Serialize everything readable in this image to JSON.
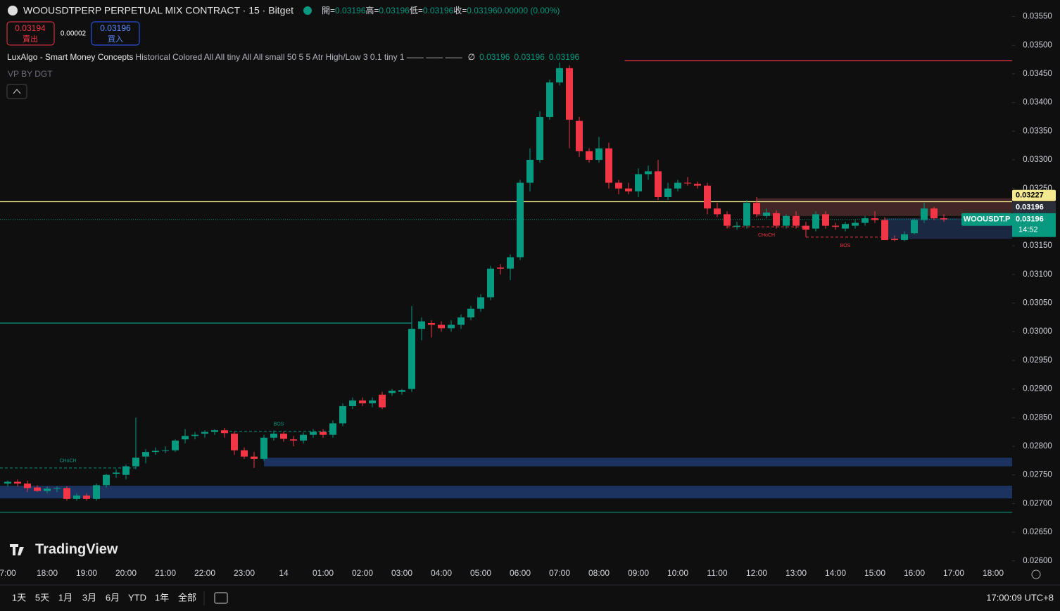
{
  "header": {
    "title": "WOOUSDTPERP PERPETUAL MIX CONTRACT · 15 · Bitget",
    "ohlc": [
      {
        "key": "開=",
        "value": 0.03196
      },
      {
        "key": "高=",
        "value": 0.03196
      },
      {
        "key": "低=",
        "value": 0.03196
      },
      {
        "key": "收=",
        "value": 0.03196
      }
    ],
    "change": "0.00000 (0.00%)",
    "sell": {
      "price": 0.03194,
      "label": "賣出"
    },
    "spread": 2e-05,
    "buy": {
      "price": 0.03196,
      "label": "買入"
    },
    "indicator": {
      "name": "LuxAlgo - Smart Money Concepts",
      "params": "Historical Colored All All tiny All All small 50 5 5 Atr High/Low 3 0.1 tiny 1 —— —— ——",
      "symbol": "∅",
      "values": [
        0.03196,
        0.03196,
        0.03196
      ]
    },
    "vp": "VP BY DGT"
  },
  "chart_data": {
    "type": "candlestick",
    "up_color": "#089981",
    "down_color": "#f23645",
    "categories": [
      "7:00",
      null,
      null,
      null,
      "18:00",
      null,
      null,
      null,
      "19:00",
      null,
      null,
      null,
      "20:00",
      null,
      null,
      null,
      "21:00",
      null,
      null,
      null,
      "22:00",
      null,
      null,
      null,
      "23:00",
      null,
      null,
      null,
      "14",
      null,
      null,
      null,
      "01:00",
      null,
      null,
      null,
      "02:00",
      null,
      null,
      null,
      "03:00",
      null,
      null,
      null,
      "04:00",
      null,
      null,
      null,
      "05:00",
      null,
      null,
      null,
      "06:00",
      null,
      null,
      null,
      "07:00",
      null,
      null,
      null,
      "08:00",
      null,
      null,
      null,
      "09:00",
      null,
      null,
      null,
      "10:00",
      null,
      null,
      null,
      "11:00",
      null,
      null,
      null,
      "12:00",
      null,
      null,
      null,
      "13:00",
      null,
      null,
      null,
      "14:00",
      null,
      null,
      null,
      "15:00",
      null,
      null,
      null,
      "16:00",
      null,
      null,
      null,
      "17:00",
      null,
      null,
      null,
      "18:00"
    ],
    "open": [
      0.02735,
      0.02738,
      0.02735,
      0.02728,
      0.02722,
      0.02726,
      0.02727,
      0.02708,
      0.02714,
      0.02708,
      0.02732,
      0.02752,
      0.0275,
      0.02765,
      0.02782,
      0.0279,
      0.02792,
      0.02793,
      0.02812,
      0.02818,
      0.02822,
      0.02825,
      0.02828,
      0.02822,
      0.02793,
      0.02782,
      0.02778,
      0.02815,
      0.02822,
      0.02812,
      0.0281,
      0.0282,
      0.02825,
      0.0282,
      0.0284,
      0.0287,
      0.0288,
      0.02875,
      0.0289,
      0.02893,
      0.02895,
      0.029,
      0.03005,
      0.03015,
      0.03012,
      0.03006,
      0.03012,
      0.03025,
      0.0304,
      0.0306,
      0.03112,
      0.0311,
      0.0313,
      0.0326,
      0.033,
      0.03375,
      0.03435,
      0.0346,
      0.03368,
      0.03315,
      0.033,
      0.0332,
      0.0326,
      0.0325,
      0.03245,
      0.03275,
      0.0328,
      0.03235,
      0.0325,
      0.0326,
      0.03258,
      0.03255,
      0.03215,
      0.03205,
      0.03183,
      0.03185,
      0.03225,
      0.03202,
      0.03207,
      0.03185,
      0.03202,
      0.03185,
      0.0318,
      0.03205,
      0.03185,
      0.0318,
      0.03185,
      0.0319,
      0.03198,
      0.03195,
      0.03162,
      0.0316,
      0.03172,
      0.03195,
      0.03215,
      0.03198,
      null,
      null,
      null,
      null,
      null
    ],
    "high": [
      0.0274,
      0.02742,
      0.0274,
      0.02732,
      0.0273,
      0.0273,
      0.0273,
      0.02718,
      0.02718,
      0.02735,
      0.02752,
      0.0276,
      0.02768,
      0.0285,
      0.02795,
      0.02798,
      0.028,
      0.02812,
      0.0283,
      0.02825,
      0.02828,
      0.0283,
      0.02832,
      0.02826,
      0.02798,
      0.0279,
      0.0282,
      0.02828,
      0.02826,
      0.02818,
      0.02824,
      0.0283,
      0.0283,
      0.02845,
      0.02875,
      0.02885,
      0.02885,
      0.02885,
      0.02895,
      0.029,
      0.029,
      0.03045,
      0.03025,
      0.0302,
      0.03018,
      0.0302,
      0.0303,
      0.03045,
      0.03065,
      0.03115,
      0.03118,
      0.03135,
      0.03265,
      0.0332,
      0.03385,
      0.0344,
      0.0347,
      0.03465,
      0.03375,
      0.0332,
      0.0334,
      0.0333,
      0.03265,
      0.0326,
      0.03285,
      0.0329,
      0.033,
      0.0326,
      0.03265,
      0.0327,
      0.03262,
      0.0326,
      0.03225,
      0.0321,
      0.03192,
      0.0323,
      0.03235,
      0.03215,
      0.03212,
      0.03205,
      0.0321,
      0.03192,
      0.0321,
      0.0321,
      0.0319,
      0.03192,
      0.03195,
      0.03202,
      0.0321,
      0.032,
      0.03168,
      0.03175,
      0.03198,
      0.03225,
      0.03218,
      0.03205,
      null,
      null,
      null,
      null,
      null
    ],
    "low": [
      0.0273,
      0.0273,
      0.0272,
      0.0272,
      0.02718,
      0.0272,
      0.02705,
      0.02705,
      0.02705,
      0.02705,
      0.02728,
      0.02745,
      0.02742,
      0.0276,
      0.0277,
      0.02785,
      0.02788,
      0.0279,
      0.02805,
      0.02812,
      0.02815,
      0.0282,
      0.02815,
      0.02785,
      0.02778,
      0.02762,
      0.02775,
      0.0281,
      0.02808,
      0.028,
      0.02805,
      0.02815,
      0.02815,
      0.02815,
      0.02835,
      0.02865,
      0.0287,
      0.02868,
      0.02865,
      0.02888,
      0.0289,
      0.02895,
      0.02985,
      0.0299,
      0.03,
      0.03,
      0.03005,
      0.0302,
      0.03035,
      0.03055,
      0.031,
      0.0309,
      0.03125,
      0.03245,
      0.03295,
      0.0337,
      0.0343,
      0.0332,
      0.03305,
      0.03295,
      0.03295,
      0.0325,
      0.0324,
      0.0324,
      0.03235,
      0.03265,
      0.0323,
      0.0323,
      0.03245,
      0.03255,
      0.0325,
      0.03205,
      0.032,
      0.0318,
      0.03178,
      0.0318,
      0.032,
      0.03198,
      0.0318,
      0.0318,
      0.0318,
      0.03165,
      0.03175,
      0.0318,
      0.03178,
      0.03175,
      0.0318,
      0.03185,
      0.0319,
      0.0316,
      0.03158,
      0.03158,
      0.0317,
      0.0319,
      0.03195,
      0.03192,
      null,
      null,
      null,
      null,
      null
    ],
    "close": [
      0.02738,
      0.02735,
      0.02727,
      0.02722,
      0.02726,
      0.02727,
      0.02708,
      0.02714,
      0.02708,
      0.02732,
      0.0275,
      0.02754,
      0.02765,
      0.0278,
      0.0279,
      0.02792,
      0.02793,
      0.0281,
      0.02818,
      0.0282,
      0.02825,
      0.02828,
      0.02823,
      0.02793,
      0.02782,
      0.02778,
      0.02815,
      0.02822,
      0.02813,
      0.0281,
      0.0282,
      0.02825,
      0.0282,
      0.0284,
      0.0287,
      0.0288,
      0.02875,
      0.0288,
      0.02868,
      0.02897,
      0.02898,
      0.03005,
      0.03018,
      0.03012,
      0.03006,
      0.03012,
      0.03025,
      0.0304,
      0.0306,
      0.0311,
      0.0311,
      0.0313,
      0.0326,
      0.033,
      0.03375,
      0.03435,
      0.0346,
      0.0337,
      0.03315,
      0.033,
      0.0332,
      0.0326,
      0.0325,
      0.03245,
      0.03275,
      0.0328,
      0.03235,
      0.0325,
      0.0326,
      0.03259,
      0.03255,
      0.03215,
      0.03205,
      0.03185,
      0.03185,
      0.03225,
      0.03205,
      0.03208,
      0.03185,
      0.03202,
      0.03185,
      0.03178,
      0.03205,
      0.03185,
      0.03183,
      0.03188,
      0.0319,
      0.03198,
      0.03195,
      0.0316,
      0.0316,
      0.0317,
      0.03195,
      0.03215,
      0.03198,
      0.03196,
      null,
      null,
      null,
      null,
      null
    ],
    "ylim": [
      0.02596,
      0.03579
    ],
    "yticks": [
      {
        "value": 0.026,
        "label": "0.02600"
      },
      {
        "value": 0.0265,
        "label": "0.02650"
      },
      {
        "value": 0.027,
        "label": "0.02700"
      },
      {
        "value": 0.0275,
        "label": "0.02750"
      },
      {
        "value": 0.028,
        "label": "0.02800"
      },
      {
        "value": 0.0285,
        "label": "0.02850"
      },
      {
        "value": 0.029,
        "label": "0.02900"
      },
      {
        "value": 0.0295,
        "label": "0.02950"
      },
      {
        "value": 0.03,
        "label": "0.03000"
      },
      {
        "value": 0.0305,
        "label": "0.03050"
      },
      {
        "value": 0.031,
        "label": "0.03100"
      },
      {
        "value": 0.0315,
        "label": "0.03150"
      },
      {
        "value": 0.032,
        "label": "0.03200"
      },
      {
        "value": 0.0325,
        "label": "0.03250"
      },
      {
        "value": 0.033,
        "label": "0.03300"
      },
      {
        "value": 0.0335,
        "label": "0.03350"
      },
      {
        "value": 0.034,
        "label": "0.03400"
      },
      {
        "value": 0.0345,
        "label": "0.03450"
      },
      {
        "value": 0.035,
        "label": "0.03500"
      },
      {
        "value": 0.0355,
        "label": "0.03550"
      }
    ],
    "zones": [
      {
        "top": 0.0278,
        "bottom": 0.02765,
        "from": 26,
        "color": "#1e3a6e"
      },
      {
        "top": 0.02731,
        "bottom": 0.02709,
        "from": -1,
        "color": "#1e3a6e"
      },
      {
        "top": 0.03233,
        "bottom": 0.03202,
        "from": 76,
        "color": "#4a2a2a"
      },
      {
        "top": 0.03198,
        "bottom": 0.03162,
        "from": 89,
        "color": "#1c2d4a"
      }
    ],
    "levels": [
      {
        "value": 0.03473,
        "from": 62.6,
        "color": "#f23645",
        "style": "solid"
      },
      {
        "value": 0.03015,
        "from": -1,
        "to": 41,
        "color": "#089981",
        "style": "solid"
      },
      {
        "value": 0.02685,
        "from": -1,
        "color": "#089981",
        "style": "solid"
      },
      {
        "value": 0.03227,
        "from": -1,
        "color": "#f5e98f",
        "style": "solid"
      },
      {
        "value": 0.03196,
        "from": -1,
        "color": "#089981",
        "style": "dotted"
      }
    ],
    "structures": [
      {
        "label": "CHoCH",
        "value": 0.02762,
        "from": -1,
        "to": 13,
        "color": "#089981"
      },
      {
        "label": "BOS",
        "value": 0.02826,
        "from": 22,
        "to": 33,
        "color": "#089981"
      },
      {
        "label": "CHoCH",
        "value": 0.03183,
        "from": 73,
        "to": 81,
        "color": "#f23645"
      },
      {
        "label": "BOS",
        "value": 0.03165,
        "from": 81,
        "to": 89,
        "color": "#f23645"
      }
    ],
    "price_tags": [
      {
        "value": 0.03227,
        "color": "#f5e98f",
        "text_color": "#000000"
      },
      {
        "value": 0.03196,
        "color": "#2a2e39",
        "text_color": "#ffffff"
      }
    ],
    "last_price": {
      "name": "WOOUSDT.P",
      "value": 0.03196,
      "countdown": "14:52",
      "color": "#089981"
    }
  },
  "toolbar": {
    "ranges": [
      "1天",
      "5天",
      "1月",
      "3月",
      "6月",
      "YTD",
      "1年",
      "全部"
    ],
    "clock": "17:00:09 UTC+8"
  },
  "watermark": "TradingView"
}
